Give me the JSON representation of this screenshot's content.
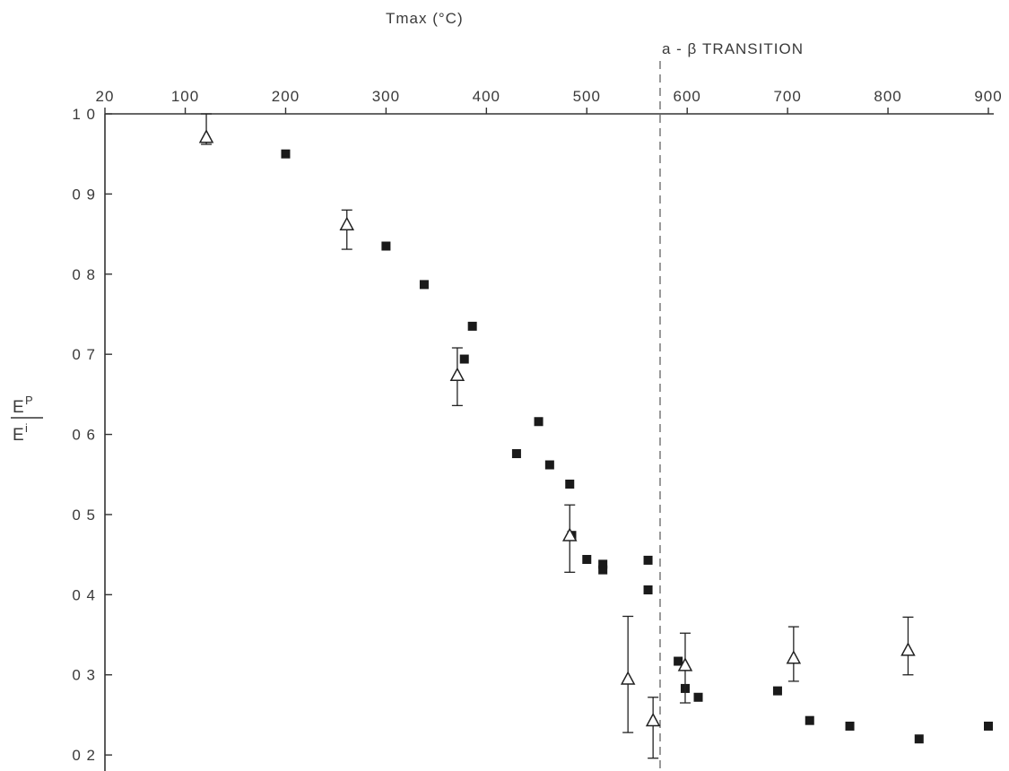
{
  "chart_data": {
    "type": "scatter",
    "title": "",
    "xlabel": "Tmax   (°C)",
    "ylabel": {
      "numerator": "E",
      "numerator_sup": "P",
      "denominator": "E",
      "denominator_sup": "i"
    },
    "x_axis_position": "top",
    "xlim": [
      20,
      900
    ],
    "ylim": [
      0.18,
      1.0
    ],
    "x_ticks": [
      {
        "value": 20,
        "label": "20"
      },
      {
        "value": 100,
        "label": "100"
      },
      {
        "value": 200,
        "label": "200"
      },
      {
        "value": 300,
        "label": "300"
      },
      {
        "value": 400,
        "label": "400"
      },
      {
        "value": 500,
        "label": "500"
      },
      {
        "value": 600,
        "label": "600"
      },
      {
        "value": 700,
        "label": "700"
      },
      {
        "value": 800,
        "label": "800"
      },
      {
        "value": 900,
        "label": "900"
      }
    ],
    "y_ticks": [
      {
        "value": 1.0,
        "label": "1 0"
      },
      {
        "value": 0.9,
        "label": "0 9"
      },
      {
        "value": 0.8,
        "label": "0 8"
      },
      {
        "value": 0.7,
        "label": "0 7"
      },
      {
        "value": 0.6,
        "label": "0 6"
      },
      {
        "value": 0.5,
        "label": "0 5"
      },
      {
        "value": 0.4,
        "label": "0 4"
      },
      {
        "value": 0.3,
        "label": "0 3"
      },
      {
        "value": 0.2,
        "label": "0 2"
      }
    ],
    "grid": false,
    "annotations": [
      {
        "text": "a - β  TRANSITION",
        "x": 573
      }
    ],
    "series": [
      {
        "marker": "filled-square",
        "points": [
          {
            "x": 200,
            "y": 0.95
          },
          {
            "x": 300,
            "y": 0.835
          },
          {
            "x": 338,
            "y": 0.787
          },
          {
            "x": 378,
            "y": 0.694
          },
          {
            "x": 386,
            "y": 0.735
          },
          {
            "x": 430,
            "y": 0.576
          },
          {
            "x": 452,
            "y": 0.616
          },
          {
            "x": 463,
            "y": 0.562
          },
          {
            "x": 483,
            "y": 0.538
          },
          {
            "x": 485,
            "y": 0.474
          },
          {
            "x": 500,
            "y": 0.444
          },
          {
            "x": 516,
            "y": 0.438
          },
          {
            "x": 516,
            "y": 0.431
          },
          {
            "x": 561,
            "y": 0.443
          },
          {
            "x": 561,
            "y": 0.406
          },
          {
            "x": 591,
            "y": 0.317
          },
          {
            "x": 598,
            "y": 0.283
          },
          {
            "x": 611,
            "y": 0.272
          },
          {
            "x": 690,
            "y": 0.28
          },
          {
            "x": 722,
            "y": 0.243
          },
          {
            "x": 762,
            "y": 0.236
          },
          {
            "x": 831,
            "y": 0.22
          },
          {
            "x": 900,
            "y": 0.236
          }
        ]
      },
      {
        "marker": "open-triangle",
        "points": [
          {
            "x": 121,
            "y": 0.97,
            "err_low": 0.962,
            "err_high": 1.0
          },
          {
            "x": 261,
            "y": 0.861,
            "err_low": 0.831,
            "err_high": 0.88
          },
          {
            "x": 371,
            "y": 0.673,
            "err_low": 0.636,
            "err_high": 0.708
          },
          {
            "x": 483,
            "y": 0.473,
            "err_low": 0.428,
            "err_high": 0.512
          },
          {
            "x": 541,
            "y": 0.294,
            "err_low": 0.228,
            "err_high": 0.373
          },
          {
            "x": 566,
            "y": 0.242,
            "err_low": 0.196,
            "err_high": 0.272
          },
          {
            "x": 598,
            "y": 0.311,
            "err_low": 0.265,
            "err_high": 0.352
          },
          {
            "x": 706,
            "y": 0.32,
            "err_low": 0.292,
            "err_high": 0.36
          },
          {
            "x": 820,
            "y": 0.33,
            "err_low": 0.3,
            "err_high": 0.372
          }
        ]
      }
    ]
  }
}
